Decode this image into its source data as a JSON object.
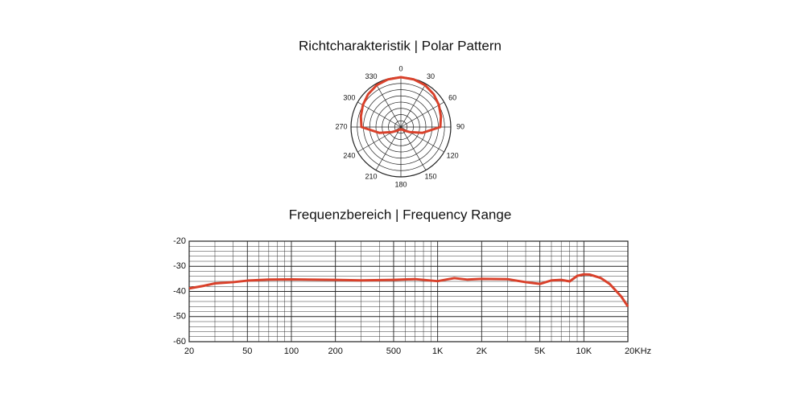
{
  "chart_data": [
    {
      "type": "polar",
      "title": "Richtcharakteristik | Polar Pattern",
      "theta": [
        0,
        15,
        30,
        45,
        60,
        75,
        90,
        105,
        120,
        135,
        150,
        165,
        180,
        195,
        210,
        225,
        240,
        255,
        270,
        285,
        300,
        315,
        330,
        345
      ],
      "values": [
        1.0,
        0.99,
        0.97,
        0.93,
        0.88,
        0.83,
        0.79,
        0.45,
        0.2,
        0.1,
        0.06,
        0.05,
        0.05,
        0.05,
        0.06,
        0.1,
        0.2,
        0.45,
        0.79,
        0.83,
        0.88,
        0.93,
        0.97,
        0.99
      ],
      "color": "#d9412b",
      "rlim": [
        0,
        1
      ],
      "thetaticks": [
        0,
        30,
        60,
        90,
        120,
        150,
        180,
        210,
        240,
        270,
        300,
        330
      ]
    },
    {
      "type": "line",
      "title": "Frequenzbereich | Frequency Range",
      "x": [
        20,
        25,
        30,
        40,
        50,
        70,
        100,
        200,
        300,
        500,
        700,
        1000,
        1300,
        1600,
        2000,
        3000,
        4000,
        5000,
        6000,
        7000,
        8000,
        9000,
        10000,
        11000,
        13000,
        15000,
        18000,
        20000
      ],
      "values": [
        -38.8,
        -37.8,
        -36.8,
        -36.3,
        -35.7,
        -35.3,
        -35.2,
        -35.4,
        -35.6,
        -35.4,
        -35.1,
        -35.9,
        -34.7,
        -35.3,
        -35.0,
        -35.1,
        -36.3,
        -37.0,
        -35.6,
        -35.4,
        -36.0,
        -33.8,
        -33.2,
        -33.3,
        -34.6,
        -37.0,
        -42.0,
        -46.0
      ],
      "color": "#d9412b",
      "xscale": "log",
      "grid": true,
      "xlim": [
        20,
        20000
      ],
      "ylim": [
        -60,
        -20
      ],
      "xticks": [
        20,
        50,
        100,
        200,
        500,
        {
          "value": 1000,
          "label": "1K"
        },
        {
          "value": 2000,
          "label": "2K"
        },
        {
          "value": 5000,
          "label": "5K"
        },
        {
          "value": 10000,
          "label": "10K"
        },
        {
          "value": 20000,
          "label": "20KHz"
        }
      ],
      "yticks": [
        -20,
        -30,
        -40,
        -50,
        -60
      ],
      "minor_xticks": [
        30,
        40,
        60,
        70,
        80,
        90,
        300,
        400,
        600,
        700,
        800,
        900,
        3000,
        4000,
        6000,
        7000,
        8000,
        9000
      ],
      "minor_yticks": [
        -22,
        -24,
        -26,
        -28,
        -32,
        -34,
        -36,
        -38,
        -42,
        -44,
        -46,
        -48,
        -52,
        -54,
        -56,
        -58
      ]
    }
  ]
}
